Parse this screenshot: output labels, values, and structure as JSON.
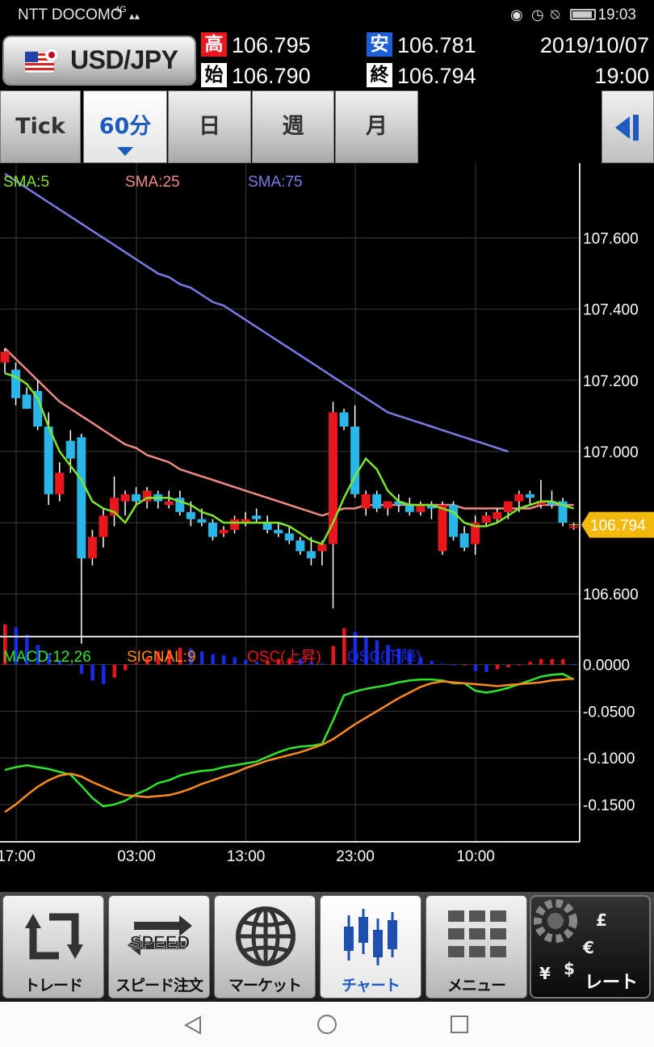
{
  "status_bar": {
    "carrier": "NTT DOCOMO",
    "network": "4G",
    "time": "19:03",
    "icons": [
      "eye-icon",
      "alarm-icon",
      "mute-icon",
      "battery-icon"
    ]
  },
  "header": {
    "pair": "USD/JPY",
    "high_label": "高",
    "high": "106.795",
    "low_label": "安",
    "low": "106.781",
    "open_label": "始",
    "open": "106.790",
    "close_label": "終",
    "close": "106.794",
    "date": "2019/10/07",
    "time": "19:00"
  },
  "tabs": [
    {
      "label": "Tick",
      "active": false
    },
    {
      "label": "60分",
      "active": true
    },
    {
      "label": "日",
      "active": false
    },
    {
      "label": "週",
      "active": false
    },
    {
      "label": "月",
      "active": false
    }
  ],
  "legend": {
    "sma5": "SMA:5",
    "sma25": "SMA:25",
    "sma75": "SMA:75"
  },
  "macd_legend": {
    "macd": "MACD:12,26",
    "signal": "SIGNAL:9",
    "osc_up": "OSC(上昇)",
    "osc_down": "OSC(下降)"
  },
  "price_marker": "106.794",
  "colors": {
    "up": "#e8161d",
    "down": "#29b6e8",
    "sma5": "#7ee62a",
    "sma25": "#ee8a86",
    "sma75": "#7b7be8",
    "macd": "#2ee62a",
    "signal": "#ff8c1a",
    "osc_up": "#e8161d",
    "osc_down": "#1a2be8",
    "marker": "#f2b90c"
  },
  "chart_data": [
    {
      "type": "candlestick",
      "price_ticks": [
        "107.600",
        "107.400",
        "107.200",
        "107.000",
        "106.600"
      ],
      "time_ticks": [
        "17:00",
        "03:00",
        "13:00",
        "23:00",
        "10:00"
      ],
      "ylim": [
        106.48,
        107.81
      ],
      "candles": [
        {
          "o": 107.25,
          "h": 107.29,
          "l": 107.22,
          "c": 107.28
        },
        {
          "o": 107.23,
          "h": 107.25,
          "l": 107.13,
          "c": 107.15
        },
        {
          "o": 107.16,
          "h": 107.18,
          "l": 107.12,
          "c": 107.12
        },
        {
          "o": 107.17,
          "h": 107.2,
          "l": 107.06,
          "c": 107.07
        },
        {
          "o": 107.07,
          "h": 107.11,
          "l": 106.85,
          "c": 106.88
        },
        {
          "o": 106.88,
          "h": 106.97,
          "l": 106.86,
          "c": 106.94
        },
        {
          "o": 107.03,
          "h": 107.06,
          "l": 106.94,
          "c": 106.98
        },
        {
          "o": 107.04,
          "h": 107.05,
          "l": 106.46,
          "c": 106.7
        },
        {
          "o": 106.7,
          "h": 106.78,
          "l": 106.68,
          "c": 106.76
        },
        {
          "o": 106.76,
          "h": 106.84,
          "l": 106.73,
          "c": 106.82
        },
        {
          "o": 106.82,
          "h": 106.93,
          "l": 106.79,
          "c": 106.87
        },
        {
          "o": 106.86,
          "h": 106.89,
          "l": 106.82,
          "c": 106.88
        },
        {
          "o": 106.88,
          "h": 106.9,
          "l": 106.85,
          "c": 106.86
        },
        {
          "o": 106.86,
          "h": 106.9,
          "l": 106.84,
          "c": 106.89
        },
        {
          "o": 106.88,
          "h": 106.89,
          "l": 106.84,
          "c": 106.86
        },
        {
          "o": 106.85,
          "h": 106.89,
          "l": 106.84,
          "c": 106.86
        },
        {
          "o": 106.87,
          "h": 106.89,
          "l": 106.82,
          "c": 106.83
        },
        {
          "o": 106.83,
          "h": 106.86,
          "l": 106.79,
          "c": 106.81
        },
        {
          "o": 106.81,
          "h": 106.84,
          "l": 106.79,
          "c": 106.8
        },
        {
          "o": 106.8,
          "h": 106.81,
          "l": 106.75,
          "c": 106.76
        },
        {
          "o": 106.77,
          "h": 106.79,
          "l": 106.76,
          "c": 106.78
        },
        {
          "o": 106.78,
          "h": 106.82,
          "l": 106.77,
          "c": 106.81
        },
        {
          "o": 106.8,
          "h": 106.83,
          "l": 106.79,
          "c": 106.81
        },
        {
          "o": 106.82,
          "h": 106.84,
          "l": 106.8,
          "c": 106.81
        },
        {
          "o": 106.8,
          "h": 106.82,
          "l": 106.77,
          "c": 106.78
        },
        {
          "o": 106.78,
          "h": 106.8,
          "l": 106.76,
          "c": 106.77
        },
        {
          "o": 106.77,
          "h": 106.79,
          "l": 106.74,
          "c": 106.75
        },
        {
          "o": 106.75,
          "h": 106.76,
          "l": 106.71,
          "c": 106.72
        },
        {
          "o": 106.72,
          "h": 106.76,
          "l": 106.68,
          "c": 106.7
        },
        {
          "o": 106.72,
          "h": 106.75,
          "l": 106.68,
          "c": 106.74
        },
        {
          "o": 106.74,
          "h": 107.14,
          "l": 106.56,
          "c": 107.11
        },
        {
          "o": 107.11,
          "h": 107.12,
          "l": 107.06,
          "c": 107.07
        },
        {
          "o": 107.07,
          "h": 107.13,
          "l": 106.87,
          "c": 106.88
        },
        {
          "o": 106.84,
          "h": 106.89,
          "l": 106.82,
          "c": 106.88
        },
        {
          "o": 106.88,
          "h": 106.89,
          "l": 106.83,
          "c": 106.84
        },
        {
          "o": 106.84,
          "h": 106.86,
          "l": 106.82,
          "c": 106.86
        },
        {
          "o": 106.86,
          "h": 106.88,
          "l": 106.83,
          "c": 106.85
        },
        {
          "o": 106.85,
          "h": 106.87,
          "l": 106.82,
          "c": 106.83
        },
        {
          "o": 106.83,
          "h": 106.86,
          "l": 106.82,
          "c": 106.85
        },
        {
          "o": 106.85,
          "h": 106.86,
          "l": 106.81,
          "c": 106.84
        },
        {
          "o": 106.72,
          "h": 106.86,
          "l": 106.71,
          "c": 106.85
        },
        {
          "o": 106.85,
          "h": 106.86,
          "l": 106.75,
          "c": 106.76
        },
        {
          "o": 106.77,
          "h": 106.79,
          "l": 106.72,
          "c": 106.73
        },
        {
          "o": 106.74,
          "h": 106.82,
          "l": 106.71,
          "c": 106.8
        },
        {
          "o": 106.8,
          "h": 106.83,
          "l": 106.79,
          "c": 106.82
        },
        {
          "o": 106.81,
          "h": 106.84,
          "l": 106.8,
          "c": 106.83
        },
        {
          "o": 106.83,
          "h": 106.86,
          "l": 106.81,
          "c": 106.86
        },
        {
          "o": 106.86,
          "h": 106.89,
          "l": 106.83,
          "c": 106.88
        },
        {
          "o": 106.88,
          "h": 106.89,
          "l": 106.85,
          "c": 106.87
        },
        {
          "o": 106.85,
          "h": 106.92,
          "l": 106.84,
          "c": 106.86
        },
        {
          "o": 106.86,
          "h": 106.89,
          "l": 106.84,
          "c": 106.85
        },
        {
          "o": 106.86,
          "h": 106.87,
          "l": 106.79,
          "c": 106.8
        },
        {
          "o": 106.79,
          "h": 106.8,
          "l": 106.78,
          "c": 106.79
        }
      ],
      "sma5": [
        107.22,
        107.21,
        107.19,
        107.15,
        107.07,
        107.0,
        106.96,
        106.92,
        106.86,
        106.84,
        106.83,
        106.8,
        106.85,
        106.87,
        106.87,
        106.87,
        106.86,
        106.85,
        106.83,
        106.82,
        106.8,
        106.8,
        106.8,
        106.8,
        106.8,
        106.8,
        106.79,
        106.77,
        106.75,
        106.74,
        106.8,
        106.87,
        106.93,
        106.98,
        106.95,
        106.89,
        106.86,
        106.85,
        106.85,
        106.85,
        106.84,
        106.83,
        106.8,
        106.79,
        106.79,
        106.8,
        106.82,
        106.84,
        106.85,
        106.86,
        106.86,
        106.85,
        106.84
      ],
      "sma25": [
        107.29,
        107.26,
        107.23,
        107.2,
        107.17,
        107.14,
        107.12,
        107.1,
        107.08,
        107.06,
        107.04,
        107.02,
        107.01,
        106.99,
        106.98,
        106.97,
        106.95,
        106.94,
        106.93,
        106.92,
        106.91,
        106.9,
        106.89,
        106.88,
        106.87,
        106.86,
        106.85,
        106.84,
        106.83,
        106.82,
        106.83,
        106.84,
        106.84,
        106.85,
        106.85,
        106.85,
        106.85,
        106.85,
        106.85,
        106.85,
        106.85,
        106.85,
        106.84,
        106.84,
        106.84,
        106.84,
        106.84,
        106.84,
        106.84,
        106.85,
        106.85,
        106.85,
        106.85
      ],
      "sma75": [
        107.78,
        107.76,
        107.74,
        107.72,
        107.7,
        107.68,
        107.66,
        107.64,
        107.62,
        107.6,
        107.58,
        107.56,
        107.54,
        107.52,
        107.5,
        107.49,
        107.47,
        107.46,
        107.44,
        107.42,
        107.41,
        107.39,
        107.37,
        107.35,
        107.33,
        107.31,
        107.29,
        107.27,
        107.25,
        107.23,
        107.21,
        107.19,
        107.17,
        107.15,
        107.13,
        107.11,
        107.1,
        107.09,
        107.08,
        107.07,
        107.06,
        107.05,
        107.04,
        107.03,
        107.02,
        107.01,
        107.0
      ],
      "current_price": 106.794
    },
    {
      "type": "line",
      "y_ticks": [
        "0.0000",
        "-0.0500",
        "-0.1000",
        "-0.1500"
      ],
      "ylim": [
        -0.19,
        0.03
      ],
      "macd": [
        -0.113,
        -0.11,
        -0.108,
        -0.11,
        -0.112,
        -0.115,
        -0.118,
        -0.13,
        -0.143,
        -0.152,
        -0.15,
        -0.146,
        -0.139,
        -0.134,
        -0.127,
        -0.124,
        -0.119,
        -0.116,
        -0.114,
        -0.113,
        -0.11,
        -0.108,
        -0.106,
        -0.104,
        -0.099,
        -0.094,
        -0.09,
        -0.088,
        -0.087,
        -0.085,
        -0.06,
        -0.033,
        -0.029,
        -0.026,
        -0.024,
        -0.022,
        -0.019,
        -0.017,
        -0.016,
        -0.016,
        -0.017,
        -0.02,
        -0.02,
        -0.028,
        -0.03,
        -0.028,
        -0.025,
        -0.021,
        -0.017,
        -0.013,
        -0.011,
        -0.01,
        -0.016
      ],
      "signal": [
        -0.158,
        -0.15,
        -0.14,
        -0.131,
        -0.124,
        -0.119,
        -0.117,
        -0.12,
        -0.126,
        -0.131,
        -0.136,
        -0.14,
        -0.141,
        -0.142,
        -0.141,
        -0.14,
        -0.137,
        -0.133,
        -0.128,
        -0.124,
        -0.12,
        -0.116,
        -0.111,
        -0.107,
        -0.103,
        -0.1,
        -0.097,
        -0.094,
        -0.09,
        -0.086,
        -0.08,
        -0.072,
        -0.064,
        -0.057,
        -0.05,
        -0.043,
        -0.036,
        -0.03,
        -0.024,
        -0.02,
        -0.018,
        -0.019,
        -0.02,
        -0.021,
        -0.022,
        -0.023,
        -0.022,
        -0.021,
        -0.02,
        -0.019,
        -0.017,
        -0.016,
        -0.015
      ],
      "osc": [
        0.043,
        0.04,
        0.032,
        0.021,
        0.012,
        0.004,
        -0.001,
        -0.01,
        -0.017,
        -0.021,
        -0.014,
        -0.006,
        0.002,
        0.008,
        0.014,
        0.016,
        0.018,
        0.017,
        0.014,
        0.011,
        0.01,
        0.008,
        0.005,
        0.003,
        0.004,
        0.006,
        0.007,
        0.006,
        0.003,
        0.001,
        0.02,
        0.039,
        0.035,
        0.031,
        0.026,
        0.021,
        0.017,
        0.013,
        0.008,
        0.004,
        0.001,
        -0.001,
        0.0,
        -0.007,
        -0.008,
        -0.005,
        -0.003,
        0.0,
        0.003,
        0.006,
        0.006,
        0.006,
        0.0
      ]
    }
  ],
  "bottom_nav": [
    {
      "label": "トレード",
      "icon": "trade-icon",
      "active": false
    },
    {
      "label": "スピード注文",
      "icon": "speed-icon",
      "speed_text": "SPEED",
      "active": false
    },
    {
      "label": "マーケット",
      "icon": "globe-icon",
      "active": false
    },
    {
      "label": "チャート",
      "icon": "chart-icon",
      "active": true
    },
    {
      "label": "メニュー",
      "icon": "menu-grid-icon",
      "active": false
    },
    {
      "label": "レート",
      "icon": "rate-icon",
      "active": false
    }
  ],
  "system_nav": [
    "back-icon",
    "home-icon",
    "recents-icon"
  ]
}
